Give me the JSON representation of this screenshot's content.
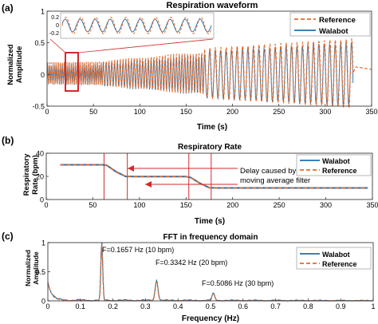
{
  "colors": {
    "walabot": "#1f6fb0",
    "reference": "#e06a2c",
    "marker": "#d12a2a",
    "inset_box": "#d12a2a"
  },
  "chart_data": [
    {
      "panel_label": "(a)",
      "type": "line",
      "title": "Respiration waveform",
      "xlabel": "Time (s)",
      "ylabel": "Normalized Amplitude",
      "xlim": [
        0,
        350
      ],
      "ylim": [
        -0.5,
        1
      ],
      "xticks": [
        "0",
        "50",
        "100",
        "150",
        "200",
        "250",
        "300",
        "350"
      ],
      "yticks": [
        "-0.5",
        "0",
        "0.5",
        "1"
      ],
      "legend": {
        "position": "top-right",
        "entries": [
          "Reference",
          "Walabot"
        ]
      },
      "series": [
        {
          "name": "Reference",
          "style": "dashed",
          "note": "sinusoidal breathing, amplitude grows from ~0.15 to ~0.55, frequency 0.5 Hz to ~0.17 Hz, ends at ~330 s"
        },
        {
          "name": "Walabot",
          "style": "solid",
          "note": "tracks reference; ends at ~330 s"
        }
      ],
      "segments": [
        {
          "t_start": 0,
          "t_end": 60,
          "freq_hz": 0.5,
          "amp_start": 0.17,
          "amp_end": 0.18
        },
        {
          "t_start": 60,
          "t_end": 170,
          "freq_hz": 0.33,
          "amp_start": 0.2,
          "amp_end": 0.35
        },
        {
          "t_start": 170,
          "t_end": 330,
          "freq_hz": 0.17,
          "amp_start": 0.4,
          "amp_end": 0.55
        }
      ],
      "inset": {
        "range_s": [
          20,
          40
        ],
        "yticks": [
          "0.2",
          "0",
          "-0.2"
        ]
      }
    },
    {
      "panel_label": "(b)",
      "type": "line",
      "title": "Respiratory Rate",
      "xlabel": "Time (s)",
      "ylabel": "Respiratory Rate (bpm)",
      "xlim": [
        0,
        350
      ],
      "ylim": [
        0,
        40
      ],
      "xticks": [
        "0",
        "50",
        "100",
        "150",
        "200",
        "250",
        "300",
        "350"
      ],
      "yticks": [
        "0",
        "20",
        "40"
      ],
      "legend": {
        "position": "top-right",
        "entries": [
          "Walabot",
          "Reference"
        ]
      },
      "series": [
        {
          "name": "Walabot",
          "style": "solid",
          "points": [
            [
              15,
              30
            ],
            [
              60,
              30
            ],
            [
              65,
              29.5
            ],
            [
              75,
              24
            ],
            [
              85,
              20
            ],
            [
              95,
              19.8
            ],
            [
              150,
              19.8
            ],
            [
              155,
              19
            ],
            [
              165,
              14
            ],
            [
              175,
              10.2
            ],
            [
              185,
              10
            ],
            [
              345,
              10
            ]
          ]
        },
        {
          "name": "Reference",
          "style": "dashed",
          "points": [
            [
              15,
              30
            ],
            [
              60,
              30
            ],
            [
              65,
              29.5
            ],
            [
              75,
              24
            ],
            [
              85,
              20
            ],
            [
              95,
              19.8
            ],
            [
              150,
              19.8
            ],
            [
              155,
              19
            ],
            [
              165,
              14
            ],
            [
              175,
              10.2
            ],
            [
              185,
              10
            ],
            [
              345,
              10
            ]
          ]
        }
      ],
      "vlines": [
        62,
        87,
        153,
        177
      ],
      "annotation": "Delay caused by moving average filter"
    },
    {
      "panel_label": "(c)",
      "type": "line",
      "title": "FFT in frequency domain",
      "xlabel": "Frequency (Hz)",
      "ylabel": "Normalized Amplitude",
      "xlim": [
        0,
        1
      ],
      "ylim": [
        0,
        1
      ],
      "xticks": [
        "0",
        "0.1",
        "0.2",
        "0.3",
        "0.4",
        "0.5",
        "0.6",
        "0.7",
        "0.8",
        "0.9",
        "1"
      ],
      "yticks": [
        "0",
        "0.5",
        "1"
      ],
      "legend": {
        "position": "top-right",
        "entries": [
          "Walabot",
          "Reference"
        ]
      },
      "peaks": [
        {
          "freq": 0.1657,
          "amp": 1.0,
          "label": "F=0.1657 Hz (10 bpm)"
        },
        {
          "freq": 0.3342,
          "amp": 0.35,
          "label": "F=0.3342 Hz (20 bpm)"
        },
        {
          "freq": 0.5086,
          "amp": 0.12,
          "label": "F=0.5086 Hz (30 bpm)"
        }
      ]
    }
  ]
}
